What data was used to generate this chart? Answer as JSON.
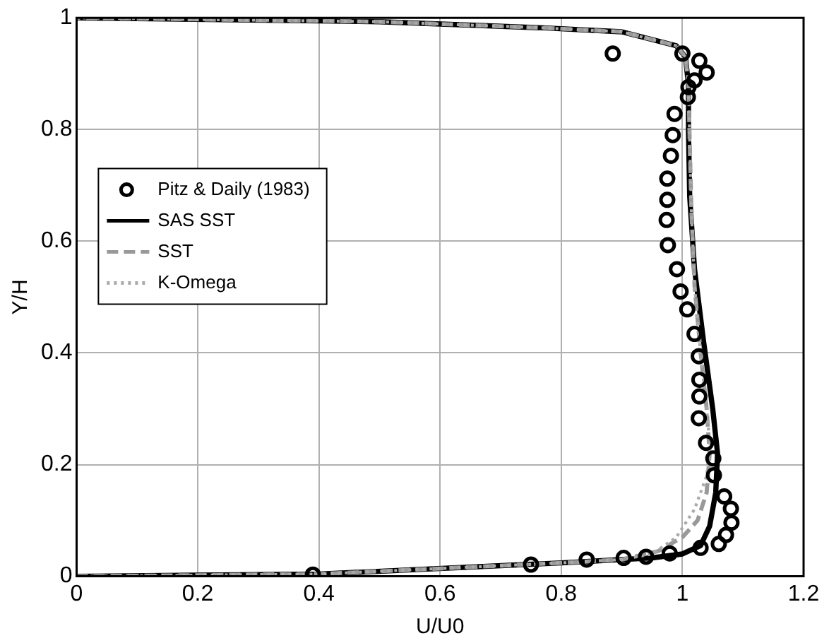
{
  "chart_data": {
    "type": "line",
    "xlabel": "U/U0",
    "ylabel": "Y/H",
    "xlim": [
      0,
      1.2
    ],
    "xticks": [
      0,
      0.2,
      0.4,
      0.6,
      0.8,
      1,
      1.2
    ],
    "ylim": [
      0,
      1
    ],
    "yticks": [
      0,
      0.2,
      0.4,
      0.6,
      0.8,
      1
    ],
    "grid": true,
    "legend": "left",
    "series": [
      {
        "name": "Pitz & Daily (1983)",
        "type": "scatter",
        "marker": "circle",
        "color": "#000000",
        "x": [
          0.885,
          1.0,
          1.028,
          1.04,
          1.02,
          1.01,
          1.009,
          0.987,
          0.984,
          0.981,
          0.975,
          0.975,
          0.974,
          0.976,
          0.991,
          0.997,
          1.008,
          1.02,
          1.027,
          1.028,
          1.028,
          1.027,
          1.039,
          1.051,
          1.052,
          1.069,
          1.08,
          1.081,
          1.072,
          1.06,
          1.03,
          0.979,
          0.94,
          0.903,
          0.842,
          0.75,
          0.39
        ],
        "values": [
          0.936,
          0.936,
          0.923,
          0.902,
          0.888,
          0.876,
          0.858,
          0.828,
          0.79,
          0.753,
          0.712,
          0.674,
          0.638,
          0.593,
          0.55,
          0.51,
          0.478,
          0.434,
          0.394,
          0.352,
          0.322,
          0.283,
          0.239,
          0.211,
          0.181,
          0.143,
          0.121,
          0.096,
          0.074,
          0.058,
          0.051,
          0.041,
          0.035,
          0.033,
          0.03,
          0.021,
          0.003
        ]
      },
      {
        "name": "SAS SST",
        "line_style": "solid",
        "color": "#000000",
        "x": [
          0,
          0.4,
          0.8,
          0.95,
          1.0,
          1.03,
          1.045,
          1.055,
          1.058,
          1.05,
          1.035,
          1.02,
          1.012,
          1.01,
          1.01,
          1.005,
          0.99,
          0.9,
          0.77,
          0.5,
          0
        ],
        "values": [
          0,
          0.004,
          0.024,
          0.033,
          0.04,
          0.055,
          0.09,
          0.15,
          0.22,
          0.3,
          0.42,
          0.55,
          0.68,
          0.8,
          0.88,
          0.93,
          0.95,
          0.975,
          0.982,
          0.993,
          1
        ]
      },
      {
        "name": "SST",
        "line_style": "dashed",
        "color": "#999999",
        "x": [
          0,
          0.4,
          0.8,
          0.9,
          0.96,
          1.0,
          1.025,
          1.04,
          1.045,
          1.04,
          1.03,
          1.02,
          1.015,
          1.012,
          1.01,
          1.005,
          0.99,
          0.9,
          0.77,
          0.5,
          0
        ],
        "values": [
          0,
          0.004,
          0.024,
          0.03,
          0.045,
          0.07,
          0.1,
          0.15,
          0.22,
          0.3,
          0.4,
          0.52,
          0.65,
          0.78,
          0.88,
          0.93,
          0.95,
          0.975,
          0.982,
          0.993,
          1
        ]
      },
      {
        "name": "K-Omega",
        "line_style": "dotted",
        "color": "#aaaaaa",
        "x": [
          0,
          0.4,
          0.8,
          0.9,
          0.95,
          0.99,
          1.02,
          1.04,
          1.045,
          1.04,
          1.03,
          1.02,
          1.015,
          1.012,
          1.01,
          1.005,
          0.99,
          0.9,
          0.77,
          0.5,
          0
        ],
        "values": [
          0,
          0.004,
          0.024,
          0.03,
          0.04,
          0.07,
          0.12,
          0.18,
          0.24,
          0.3,
          0.4,
          0.52,
          0.65,
          0.78,
          0.88,
          0.93,
          0.95,
          0.975,
          0.982,
          0.993,
          1
        ]
      }
    ]
  }
}
